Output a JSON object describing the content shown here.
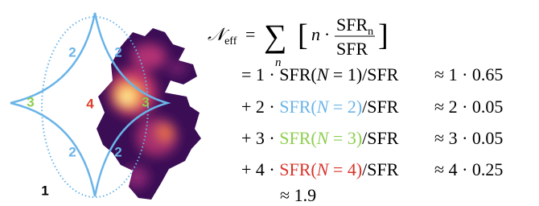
{
  "diagram": {
    "labels": [
      {
        "text": "2",
        "color": "#6ab4e8"
      },
      {
        "text": "2",
        "color": "#6ab4e8"
      },
      {
        "text": "3",
        "color": "#8ccf4d"
      },
      {
        "text": "4",
        "color": "#e0402a"
      },
      {
        "text": "3",
        "color": "#8ccf4d"
      },
      {
        "text": "2",
        "color": "#6ab4e8"
      },
      {
        "text": "2",
        "color": "#6ab4e8"
      },
      {
        "text": "1",
        "color": "#000000"
      }
    ]
  },
  "equation": {
    "lhs": "𝒩",
    "lhs_sub": "eff",
    "equals": "=",
    "sum": "∑",
    "sum_index": "n",
    "bracket_open": "[",
    "factor": "n ·",
    "numerator": "SFR",
    "numerator_sub": "n",
    "denominator": "SFR",
    "bracket_close": "]",
    "terms": [
      {
        "prefix": "= 1 · ",
        "sfr_open": "SFR(",
        "variable": "N",
        "sfr_close": " = 1)",
        "suffix": "/SFR",
        "approx": "≈ 1 · 0.65",
        "color": "#000000"
      },
      {
        "prefix": "+ 2 · ",
        "sfr_open": "SFR(",
        "variable": "N",
        "sfr_close": " = 2)",
        "suffix": "/SFR",
        "approx": "≈ 2 · 0.05",
        "color": "#6ab4e8"
      },
      {
        "prefix": "+ 3 · ",
        "sfr_open": "SFR(",
        "variable": "N",
        "sfr_close": " = 3)",
        "suffix": "/SFR",
        "approx": "≈ 3 · 0.05",
        "color": "#8ccf4d"
      },
      {
        "prefix": "+ 4 · ",
        "sfr_open": "SFR(",
        "variable": "N",
        "sfr_close": " = 4)",
        "suffix": "/SFR",
        "approx": "≈ 4 · 0.25",
        "color": "#d8342a"
      }
    ],
    "total": "≈ 1.9"
  }
}
